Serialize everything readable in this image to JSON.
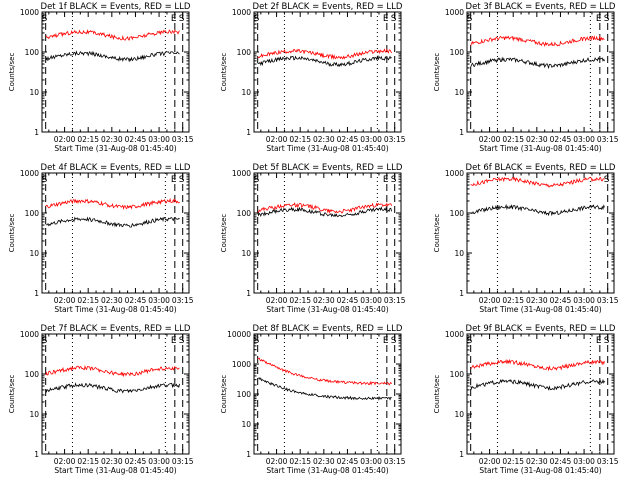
{
  "chart_data": [
    {
      "type": "line",
      "title": "Det 1f BLACK = Events, RED = LLD",
      "ylabel": "Counts/sec",
      "xlabel": "Start Time (31-Aug-08 01:45:40)",
      "yscale": "log",
      "ylim": [
        1,
        1000
      ],
      "yticks": [
        "1",
        "10",
        "100",
        "1000"
      ],
      "xticks": [
        "02:00",
        "02:15",
        "02:30",
        "02:45",
        "03:00",
        "03:15"
      ],
      "markers": [
        {
          "label": "S",
          "x": "01:48"
        },
        {
          "label": "E",
          "x": "03:10"
        },
        {
          "label": "S",
          "x": "03:15"
        }
      ],
      "dotted_lines": [
        "02:05",
        "03:04"
      ],
      "series": [
        {
          "name": "Events",
          "color": "#000000",
          "level": 80
        },
        {
          "name": "LLD",
          "color": "#ff0000",
          "level": 270
        }
      ]
    },
    {
      "type": "line",
      "title": "Det 2f BLACK = Events, RED = LLD",
      "ylabel": "Counts/sec",
      "xlabel": "Start Time (31-Aug-08 01:45:40)",
      "yscale": "log",
      "ylim": [
        1,
        1000
      ],
      "yticks": [
        "1",
        "10",
        "100",
        "1000"
      ],
      "xticks": [
        "02:00",
        "02:15",
        "02:30",
        "02:45",
        "03:00",
        "03:15"
      ],
      "markers": [
        {
          "label": "S",
          "x": "01:48"
        },
        {
          "label": "E",
          "x": "03:10"
        },
        {
          "label": "S",
          "x": "03:15"
        }
      ],
      "dotted_lines": [
        "02:05",
        "03:04"
      ],
      "series": [
        {
          "name": "Events",
          "color": "#000000",
          "level": 60
        },
        {
          "name": "LLD",
          "color": "#ff0000",
          "level": 90
        }
      ]
    },
    {
      "type": "line",
      "title": "Det 3f BLACK = Events, RED = LLD",
      "ylabel": "Counts/sec",
      "xlabel": "Start Time (31-Aug-08 01:45:40)",
      "yscale": "log",
      "ylim": [
        1,
        1000
      ],
      "yticks": [
        "1",
        "10",
        "100",
        "1000"
      ],
      "xticks": [
        "02:00",
        "02:15",
        "02:30",
        "02:45",
        "03:00",
        "03:15"
      ],
      "markers": [
        {
          "label": "S",
          "x": "01:48"
        },
        {
          "label": "E",
          "x": "03:10"
        },
        {
          "label": "S",
          "x": "03:15"
        }
      ],
      "dotted_lines": [
        "02:05",
        "03:04"
      ],
      "series": [
        {
          "name": "Events",
          "color": "#000000",
          "level": 55
        },
        {
          "name": "LLD",
          "color": "#ff0000",
          "level": 190
        }
      ]
    },
    {
      "type": "line",
      "title": "Det 4f BLACK = Events, RED = LLD",
      "ylabel": "Counts/sec",
      "xlabel": "Start Time (31-Aug-08 01:45:40)",
      "yscale": "log",
      "ylim": [
        1,
        1000
      ],
      "yticks": [
        "1",
        "10",
        "100",
        "1000"
      ],
      "xticks": [
        "02:00",
        "02:15",
        "02:30",
        "02:45",
        "03:00",
        "03:15"
      ],
      "markers": [
        {
          "label": "S",
          "x": "01:48"
        },
        {
          "label": "E",
          "x": "03:10"
        },
        {
          "label": "S",
          "x": "03:15"
        }
      ],
      "dotted_lines": [
        "02:05",
        "03:04"
      ],
      "series": [
        {
          "name": "Events",
          "color": "#000000",
          "level": 60
        },
        {
          "name": "LLD",
          "color": "#ff0000",
          "level": 170
        }
      ]
    },
    {
      "type": "line",
      "title": "Det 5f BLACK = Events, RED = LLD",
      "ylabel": "Counts/sec",
      "xlabel": "Start Time (31-Aug-08 01:45:40)",
      "yscale": "log",
      "ylim": [
        1,
        1000
      ],
      "yticks": [
        "1",
        "10",
        "100",
        "1000"
      ],
      "xticks": [
        "02:00",
        "02:15",
        "02:30",
        "02:45",
        "03:00",
        "03:15"
      ],
      "markers": [
        {
          "label": "S",
          "x": "01:48"
        },
        {
          "label": "E",
          "x": "03:10"
        },
        {
          "label": "S",
          "x": "03:15"
        }
      ],
      "dotted_lines": [
        "02:05",
        "03:04"
      ],
      "series": [
        {
          "name": "Events",
          "color": "#000000",
          "level": 105
        },
        {
          "name": "LLD",
          "color": "#ff0000",
          "level": 135
        }
      ]
    },
    {
      "type": "line",
      "title": "Det 6f BLACK = Events, RED = LLD",
      "ylabel": "Counts/sec",
      "xlabel": "Start Time (31-Aug-08 01:45:40)",
      "yscale": "log",
      "ylim": [
        1,
        1000
      ],
      "yticks": [
        "1",
        "10",
        "100",
        "1000"
      ],
      "xticks": [
        "02:00",
        "02:15",
        "02:30",
        "02:45",
        "03:00",
        "03:15"
      ],
      "markers": [
        {
          "label": "S",
          "x": "03:15"
        }
      ],
      "dotted_lines": [
        "02:05",
        "03:04"
      ],
      "series": [
        {
          "name": "Events",
          "color": "#000000",
          "level": 120
        },
        {
          "name": "LLD",
          "color": "#ff0000",
          "level": 600
        }
      ]
    },
    {
      "type": "line",
      "title": "Det 7f BLACK = Events, RED = LLD",
      "ylabel": "Counts/sec",
      "xlabel": "Start Time (31-Aug-08 01:45:40)",
      "yscale": "log",
      "ylim": [
        1,
        1000
      ],
      "yticks": [
        "1",
        "10",
        "100",
        "1000"
      ],
      "xticks": [
        "02:00",
        "02:15",
        "02:30",
        "02:45",
        "03:00",
        "03:15"
      ],
      "markers": [
        {
          "label": "S",
          "x": "01:48"
        },
        {
          "label": "E",
          "x": "03:10"
        },
        {
          "label": "S",
          "x": "03:15"
        }
      ],
      "dotted_lines": [
        "02:05",
        "03:04"
      ],
      "series": [
        {
          "name": "Events",
          "color": "#000000",
          "level": 45
        },
        {
          "name": "LLD",
          "color": "#ff0000",
          "level": 120
        }
      ]
    },
    {
      "type": "line",
      "title": "Det 8f BLACK = Events, RED = LLD",
      "ylabel": "Counts/sec",
      "xlabel": "Start Time (31-Aug-08 01:45:40)",
      "yscale": "log",
      "ylim": [
        1,
        10000
      ],
      "yticks": [
        "1",
        "10",
        "100",
        "1000",
        "10000"
      ],
      "xticks": [
        "02:00",
        "02:15",
        "02:30",
        "02:45",
        "03:00",
        "03:15"
      ],
      "markers": [
        {
          "label": "S",
          "x": "01:48"
        },
        {
          "label": "E",
          "x": "03:10"
        },
        {
          "label": "S",
          "x": "03:15"
        }
      ],
      "dotted_lines": [
        "02:05",
        "03:04"
      ],
      "series": [
        {
          "name": "Events",
          "color": "#000000",
          "level": 70
        },
        {
          "name": "LLD",
          "color": "#ff0000",
          "level": 220
        }
      ]
    },
    {
      "type": "line",
      "title": "Det 9f BLACK = Events, RED = LLD",
      "ylabel": "Counts/sec",
      "xlabel": "Start Time (31-Aug-08 01:45:40)",
      "yscale": "log",
      "ylim": [
        1,
        1000
      ],
      "yticks": [
        "1",
        "10",
        "100",
        "1000"
      ],
      "xticks": [
        "02:00",
        "02:15",
        "02:30",
        "02:45",
        "03:00",
        "03:15"
      ],
      "markers": [
        {
          "label": "S",
          "x": "01:48"
        },
        {
          "label": "E",
          "x": "03:10"
        },
        {
          "label": "S",
          "x": "03:15"
        }
      ],
      "dotted_lines": [
        "02:05",
        "03:04"
      ],
      "series": [
        {
          "name": "Events",
          "color": "#000000",
          "level": 55
        },
        {
          "name": "LLD",
          "color": "#ff0000",
          "level": 170
        }
      ]
    }
  ]
}
